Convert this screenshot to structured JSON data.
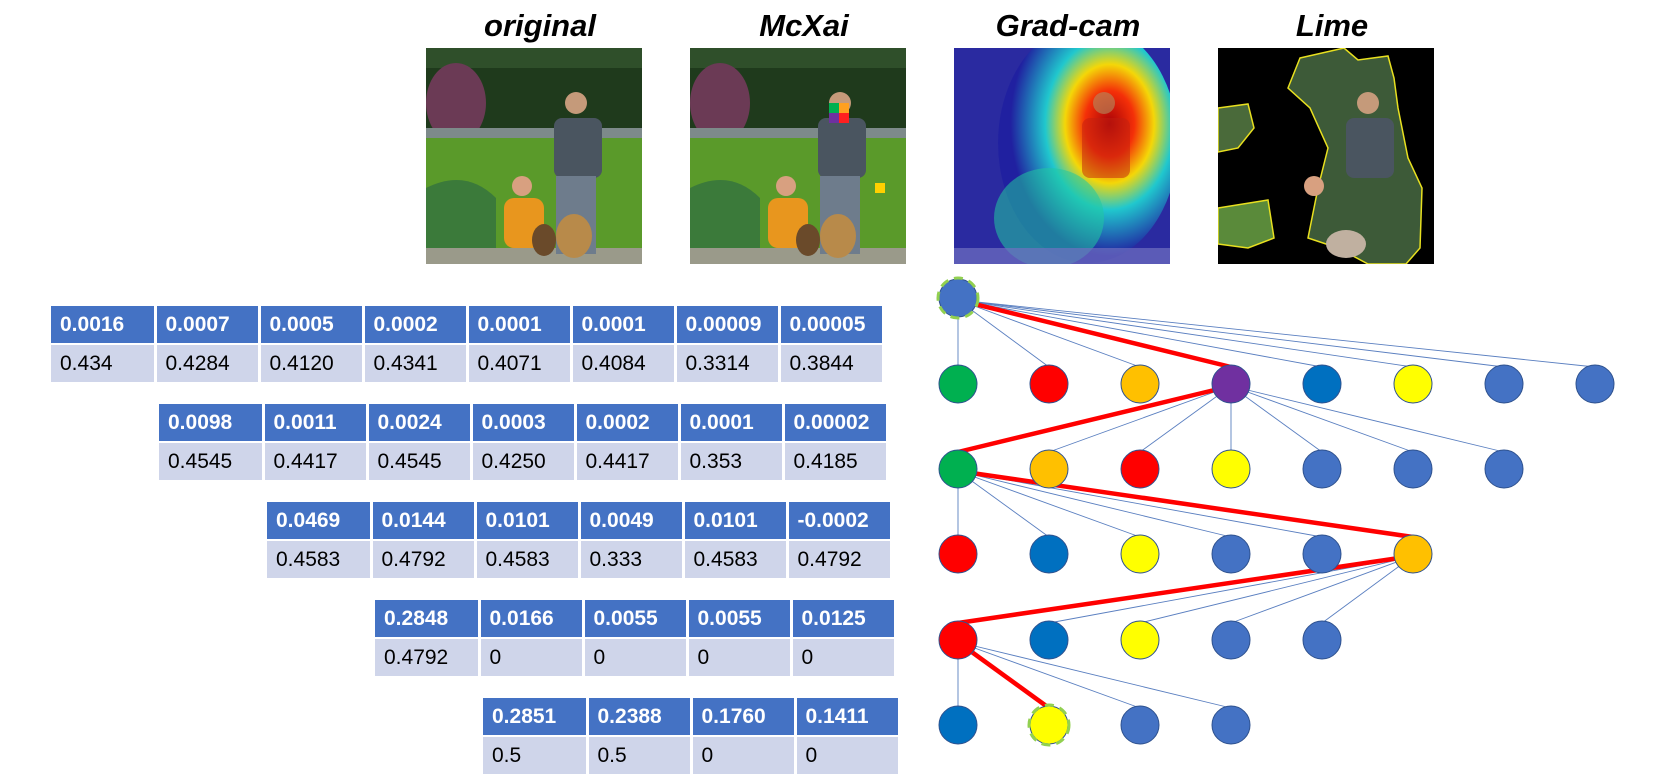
{
  "image_titles": [
    "original",
    "McXai",
    "Grad-cam",
    "Lime"
  ],
  "tables": [
    {
      "headers": [
        "0.0016",
        "0.0007",
        "0.0005",
        "0.0002",
        "0.0001",
        "0.0001",
        "0.00009",
        "0.00005"
      ],
      "values": [
        "0.434",
        "0.4284",
        "0.4120",
        "0.4341",
        "0.4071",
        "0.4084",
        "0.3314",
        "0.3844"
      ]
    },
    {
      "headers": [
        "0.0098",
        "0.0011",
        "0.0024",
        "0.0003",
        "0.0002",
        "0.0001",
        "0.00002"
      ],
      "values": [
        "0.4545",
        "0.4417",
        "0.4545",
        "0.4250",
        "0.4417",
        "0.353",
        "0.4185"
      ]
    },
    {
      "headers": [
        "0.0469",
        "0.0144",
        "0.0101",
        "0.0049",
        "0.0101",
        "-0.0002"
      ],
      "values": [
        "0.4583",
        "0.4792",
        "0.4583",
        "0.333",
        "0.4583",
        "0.4792"
      ]
    },
    {
      "headers": [
        "0.2848",
        "0.0166",
        "0.0055",
        "0.0055",
        "0.0125"
      ],
      "values": [
        "0.4792",
        "0",
        "0",
        "0",
        "0"
      ]
    },
    {
      "headers": [
        "0.2851",
        "0.2388",
        "0.1760",
        "0.1411"
      ],
      "values": [
        "0.5",
        "0.5",
        "0",
        "0"
      ]
    }
  ],
  "tree": {
    "root_color": "#4472c4",
    "levels": [
      {
        "colors": [
          "#00b050",
          "#ff0000",
          "#ffc000",
          "#7030a0",
          "#0070c0",
          "#ffff00",
          "#4472c4",
          "#4472c4"
        ],
        "selected": 3
      },
      {
        "colors": [
          "#00b050",
          "#ffc000",
          "#ff0000",
          "#ffff00",
          "#4472c4",
          "#4472c4",
          "#4472c4"
        ],
        "selected": 0
      },
      {
        "colors": [
          "#ff0000",
          "#0070c0",
          "#ffff00",
          "#4472c4",
          "#4472c4",
          "#ffc000"
        ],
        "selected": 5
      },
      {
        "colors": [
          "#ff0000",
          "#0070c0",
          "#ffff00",
          "#4472c4",
          "#4472c4"
        ],
        "selected": 0
      },
      {
        "colors": [
          "#0070c0",
          "#ffff00",
          "#4472c4",
          "#4472c4"
        ],
        "selected": 1
      }
    ],
    "path_color": "#ff0000",
    "marker_color": "#92d050"
  }
}
